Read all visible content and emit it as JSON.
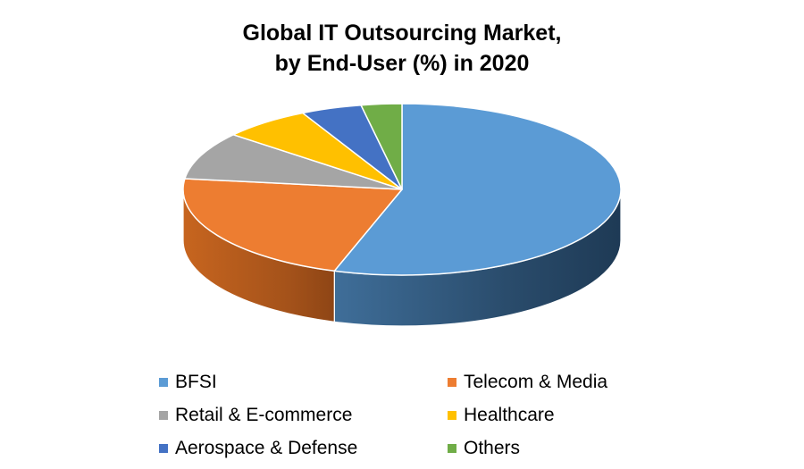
{
  "chart_data": {
    "type": "pie",
    "style": "3d",
    "title_lines": [
      "Global IT Outsourcing Market,",
      "by End-User (%) in 2020"
    ],
    "slices": [
      {
        "label": "BFSI",
        "value": 55,
        "color": "#5B9BD5"
      },
      {
        "label": "Telecom & Media",
        "value": 22,
        "color": "#ED7D31"
      },
      {
        "label": "Retail & E-commerce",
        "value": 9,
        "color": "#A5A5A5"
      },
      {
        "label": "Healthcare",
        "value": 6.5,
        "color": "#FFC000"
      },
      {
        "label": "Aerospace & Defense",
        "value": 4.5,
        "color": "#4472C4"
      },
      {
        "label": "Others",
        "value": 3,
        "color": "#70AD47"
      }
    ],
    "legend_position": "bottom"
  }
}
